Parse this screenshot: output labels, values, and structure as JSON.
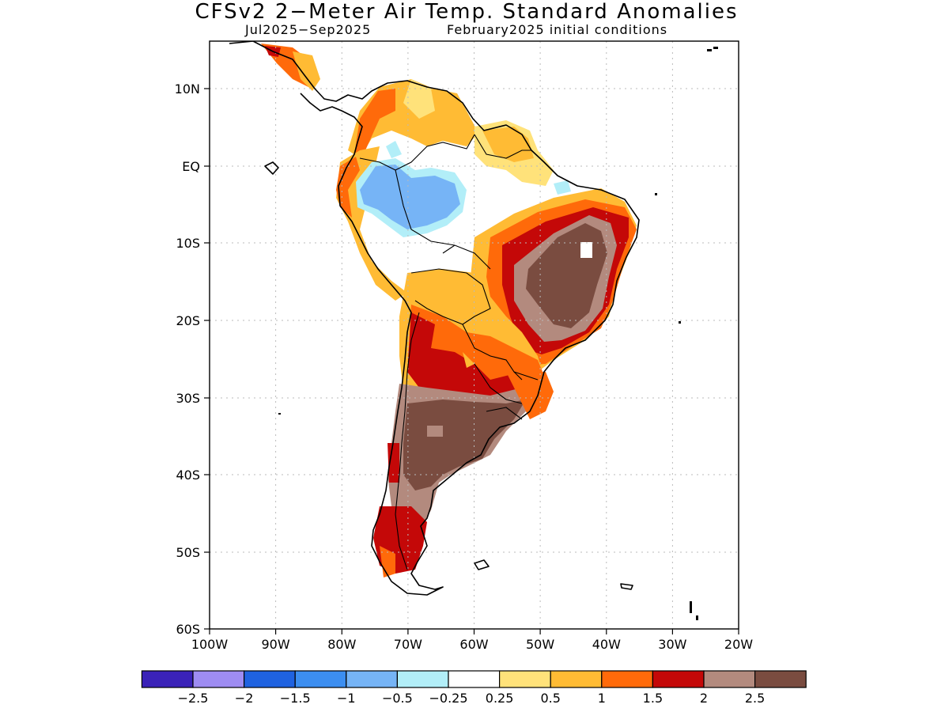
{
  "header": {
    "title": "CFSv2 2-Meter Air Temp. Standard Anomalies",
    "period": "Jul2025-Sep2025",
    "init": "February2025 initial conditions"
  },
  "axes": {
    "lat_labels": [
      "10N",
      "EQ",
      "10S",
      "20S",
      "30S",
      "40S",
      "50S",
      "60S"
    ],
    "lon_labels": [
      "100W",
      "90W",
      "80W",
      "70W",
      "60W",
      "50W",
      "40W",
      "30W",
      "20W"
    ]
  },
  "colorbar": {
    "labels": [
      "-2.5",
      "-2",
      "-1.5",
      "-1",
      "-0.5",
      "-0.25",
      "0.25",
      "0.5",
      "1",
      "1.5",
      "2",
      "2.5"
    ],
    "colors": [
      "#3a22b8",
      "#9e8cf2",
      "#1f62e0",
      "#3c8ef0",
      "#76b4f6",
      "#b2eef8",
      "#ffffff",
      "#ffe27a",
      "#ffbb34",
      "#ff6a0a",
      "#c40808",
      "#b38a7e",
      "#7a4c40"
    ]
  }
}
